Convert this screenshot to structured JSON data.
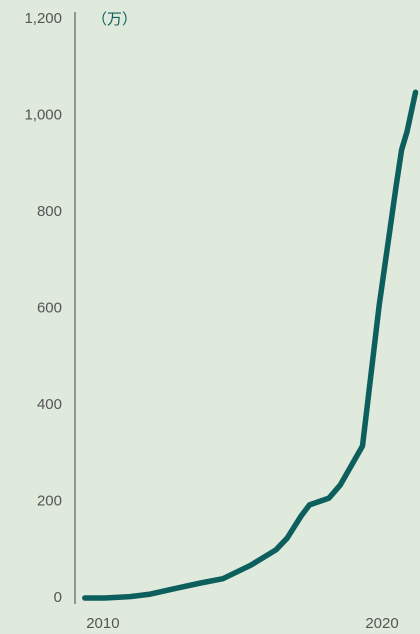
{
  "chart_data": {
    "type": "line",
    "unit_label": "（万）",
    "x": [
      2009.35,
      2010.07,
      2010.97,
      2011.7,
      2012.6,
      2013.5,
      2014.3,
      2015.3,
      2016.2,
      2016.6,
      2017.1,
      2017.4,
      2018.1,
      2018.5,
      2019.3,
      2019.9,
      2020.5,
      2020.7,
      2020.9,
      2021.2
    ],
    "values": [
      0,
      0,
      3,
      8,
      20,
      31,
      40,
      68,
      100,
      124,
      170,
      193,
      207,
      234,
      315,
      607,
      852,
      929,
      967,
      1048
    ],
    "color": "#0d5f5d",
    "xlim": [
      2009,
      2021.35
    ],
    "xticks": [
      2010,
      2020
    ],
    "ylim": [
      0,
      1200
    ],
    "yticks": [
      0,
      200,
      400,
      600,
      800,
      {
        "value": 1000,
        "label": "1,000"
      },
      {
        "value": 1200,
        "label": "1,200"
      }
    ],
    "grid": false
  }
}
